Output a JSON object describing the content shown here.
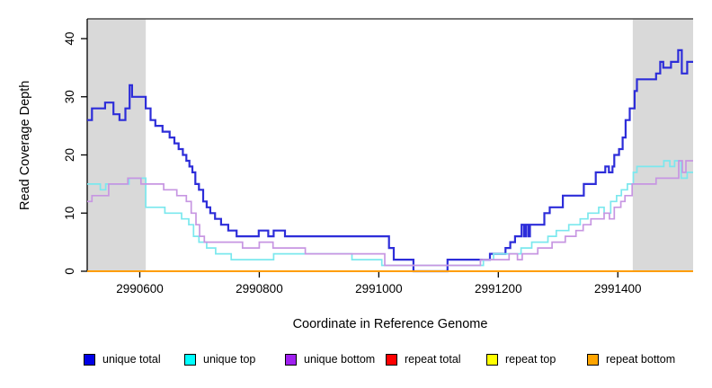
{
  "chart_data": {
    "type": "line",
    "step": true,
    "title": "",
    "xlabel": "Coordinate in Reference Genome",
    "ylabel": "Read Coverage Depth",
    "xlim": [
      2990512,
      2991526
    ],
    "ylim": [
      0,
      43
    ],
    "xticks": [
      2990600,
      2990800,
      2991000,
      2991200,
      2991400
    ],
    "yticks": [
      0,
      10,
      20,
      30,
      40
    ],
    "grid": false,
    "legend_position": "bottom",
    "shaded_regions": [
      {
        "x0": 2990512,
        "x1": 2990610,
        "color": "#d9d9d9"
      },
      {
        "x0": 2991425,
        "x1": 2991526,
        "color": "#d9d9d9"
      }
    ],
    "series": [
      {
        "name": "unique total",
        "legend_color": "#0000e6",
        "line_color": "#2d2dd9",
        "line_width": 2.2,
        "points": [
          [
            2990512,
            26
          ],
          [
            2990520,
            28
          ],
          [
            2990542,
            29
          ],
          [
            2990556,
            27
          ],
          [
            2990566,
            26
          ],
          [
            2990576,
            28
          ],
          [
            2990583,
            32
          ],
          [
            2990587,
            30
          ],
          [
            2990610,
            28
          ],
          [
            2990618,
            26
          ],
          [
            2990626,
            25
          ],
          [
            2990638,
            24
          ],
          [
            2990650,
            23
          ],
          [
            2990658,
            22
          ],
          [
            2990665,
            21
          ],
          [
            2990672,
            20
          ],
          [
            2990678,
            19
          ],
          [
            2990683,
            18
          ],
          [
            2990688,
            17
          ],
          [
            2990693,
            15
          ],
          [
            2990699,
            14
          ],
          [
            2990706,
            12
          ],
          [
            2990712,
            11
          ],
          [
            2990718,
            10
          ],
          [
            2990726,
            9
          ],
          [
            2990736,
            8
          ],
          [
            2990748,
            7
          ],
          [
            2990762,
            6
          ],
          [
            2990799,
            7
          ],
          [
            2990815,
            6
          ],
          [
            2990824,
            7
          ],
          [
            2990843,
            6
          ],
          [
            2991017,
            4
          ],
          [
            2991025,
            2
          ],
          [
            2991058,
            0
          ],
          [
            2991115,
            2
          ],
          [
            2991186,
            3
          ],
          [
            2991212,
            4
          ],
          [
            2991220,
            5
          ],
          [
            2991228,
            6
          ],
          [
            2991239,
            8
          ],
          [
            2991243,
            6
          ],
          [
            2991246,
            8
          ],
          [
            2991250,
            6
          ],
          [
            2991253,
            8
          ],
          [
            2991277,
            10
          ],
          [
            2991286,
            11
          ],
          [
            2991308,
            13
          ],
          [
            2991343,
            15
          ],
          [
            2991363,
            17
          ],
          [
            2991379,
            18
          ],
          [
            2991385,
            17
          ],
          [
            2991391,
            18
          ],
          [
            2991394,
            20
          ],
          [
            2991402,
            21
          ],
          [
            2991408,
            23
          ],
          [
            2991413,
            26
          ],
          [
            2991420,
            28
          ],
          [
            2991428,
            31
          ],
          [
            2991432,
            33
          ],
          [
            2991464,
            34
          ],
          [
            2991471,
            36
          ],
          [
            2991476,
            35
          ],
          [
            2991489,
            36
          ],
          [
            2991501,
            38
          ],
          [
            2991507,
            34
          ],
          [
            2991516,
            36
          ]
        ]
      },
      {
        "name": "unique top",
        "legend_color": "#00ffff",
        "line_color": "#7be8ee",
        "line_width": 1.7,
        "points": [
          [
            2990512,
            15
          ],
          [
            2990534,
            14
          ],
          [
            2990543,
            15
          ],
          [
            2990582,
            16
          ],
          [
            2990610,
            11
          ],
          [
            2990642,
            10
          ],
          [
            2990670,
            9
          ],
          [
            2990682,
            8
          ],
          [
            2990690,
            6
          ],
          [
            2990699,
            5
          ],
          [
            2990712,
            4
          ],
          [
            2990727,
            3
          ],
          [
            2990753,
            2
          ],
          [
            2990824,
            3
          ],
          [
            2990955,
            2
          ],
          [
            2991005,
            1
          ],
          [
            2991175,
            2
          ],
          [
            2991192,
            3
          ],
          [
            2991238,
            4
          ],
          [
            2991256,
            5
          ],
          [
            2991283,
            6
          ],
          [
            2991297,
            7
          ],
          [
            2991318,
            8
          ],
          [
            2991337,
            9
          ],
          [
            2991350,
            10
          ],
          [
            2991368,
            11
          ],
          [
            2991377,
            10
          ],
          [
            2991388,
            12
          ],
          [
            2991398,
            13
          ],
          [
            2991406,
            14
          ],
          [
            2991416,
            15
          ],
          [
            2991426,
            17
          ],
          [
            2991432,
            18
          ],
          [
            2991477,
            19
          ],
          [
            2991487,
            18
          ],
          [
            2991495,
            19
          ],
          [
            2991506,
            16
          ],
          [
            2991516,
            17
          ]
        ]
      },
      {
        "name": "unique bottom",
        "legend_color": "#a020f0",
        "line_color": "#c796e2",
        "line_width": 1.7,
        "points": [
          [
            2990512,
            12
          ],
          [
            2990520,
            13
          ],
          [
            2990548,
            15
          ],
          [
            2990580,
            16
          ],
          [
            2990602,
            15
          ],
          [
            2990640,
            14
          ],
          [
            2990662,
            13
          ],
          [
            2990678,
            12
          ],
          [
            2990686,
            10
          ],
          [
            2990694,
            8
          ],
          [
            2990700,
            6
          ],
          [
            2990708,
            5
          ],
          [
            2990772,
            4
          ],
          [
            2990800,
            5
          ],
          [
            2990823,
            4
          ],
          [
            2990877,
            3
          ],
          [
            2991010,
            1
          ],
          [
            2991170,
            2
          ],
          [
            2991218,
            3
          ],
          [
            2991232,
            2
          ],
          [
            2991240,
            3
          ],
          [
            2991266,
            4
          ],
          [
            2991290,
            5
          ],
          [
            2991312,
            6
          ],
          [
            2991330,
            7
          ],
          [
            2991342,
            8
          ],
          [
            2991355,
            9
          ],
          [
            2991377,
            10
          ],
          [
            2991386,
            9
          ],
          [
            2991394,
            11
          ],
          [
            2991405,
            12
          ],
          [
            2991412,
            13
          ],
          [
            2991424,
            15
          ],
          [
            2991464,
            16
          ],
          [
            2991502,
            19
          ],
          [
            2991508,
            17
          ],
          [
            2991514,
            19
          ]
        ]
      },
      {
        "name": "repeat total",
        "legend_color": "#ff0000",
        "line_color": "#ee0000",
        "line_width": 1.5,
        "points": [
          [
            2990512,
            0
          ]
        ]
      },
      {
        "name": "repeat top",
        "legend_color": "#ffff00",
        "line_color": "#ffff00",
        "line_width": 1.5,
        "points": [
          [
            2990512,
            0
          ]
        ]
      },
      {
        "name": "repeat bottom",
        "legend_color": "#ffa500",
        "line_color": "#ff9d00",
        "line_width": 2,
        "points": [
          [
            2990512,
            0
          ]
        ]
      }
    ],
    "axis_color": "#000000",
    "top_border_color": "#4a4a4a"
  }
}
